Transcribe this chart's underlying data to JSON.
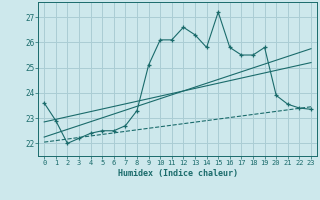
{
  "xlabel": "Humidex (Indice chaleur)",
  "bg_color": "#cde8ec",
  "grid_color": "#aacdd4",
  "line_color": "#1a6b6b",
  "x_ticks": [
    0,
    1,
    2,
    3,
    4,
    5,
    6,
    7,
    8,
    9,
    10,
    11,
    12,
    13,
    14,
    15,
    16,
    17,
    18,
    19,
    20,
    21,
    22,
    23
  ],
  "y_ticks": [
    22,
    23,
    24,
    25,
    26,
    27
  ],
  "xlim": [
    -0.5,
    23.5
  ],
  "ylim": [
    21.5,
    27.6
  ],
  "series1_x": [
    0,
    1,
    2,
    3,
    4,
    5,
    6,
    7,
    8,
    9,
    10,
    11,
    12,
    13,
    14,
    15,
    16,
    17,
    18,
    19,
    20,
    21,
    22,
    23
  ],
  "series1_y": [
    23.6,
    22.9,
    22.0,
    22.2,
    22.4,
    22.5,
    22.5,
    22.7,
    23.3,
    25.1,
    26.1,
    26.1,
    26.6,
    26.3,
    25.8,
    27.2,
    25.8,
    25.5,
    25.5,
    25.8,
    23.9,
    23.55,
    23.4,
    23.35
  ],
  "trend1_x": [
    0,
    23
  ],
  "trend1_y": [
    22.25,
    25.75
  ],
  "trend2_x": [
    0,
    23
  ],
  "trend2_y": [
    22.85,
    25.2
  ],
  "trend3_x": [
    0,
    23
  ],
  "trend3_y": [
    22.05,
    23.45
  ]
}
